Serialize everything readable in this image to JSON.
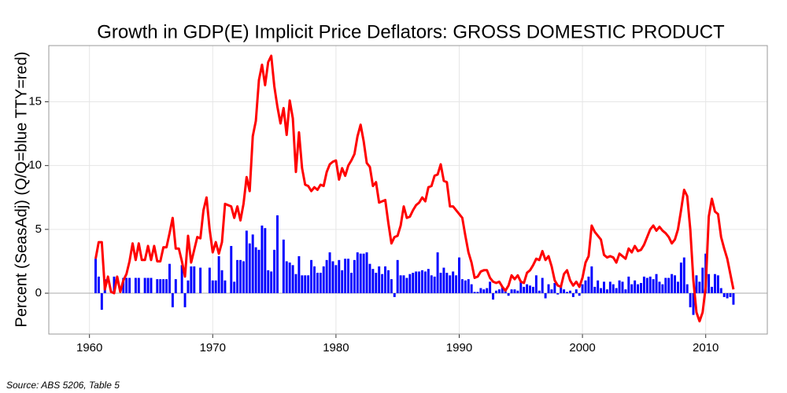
{
  "chart_data": {
    "type": "bar",
    "title": "Growth in GDP(E) Implicit Price Deflators: GROSS DOMESTIC PRODUCT",
    "y_label": "Percent (SeasAdj) (Q/Q=blue TTY=red)",
    "caption": "Source: ABS 5206, Table 5",
    "xlim": [
      1956.7,
      2015.0
    ],
    "ylim": [
      -3.2,
      19.4
    ],
    "xticks": [
      1960,
      1970,
      1980,
      1990,
      2000,
      2010
    ],
    "yticks": [
      0,
      5,
      10,
      15
    ],
    "grid": true,
    "x": [
      1960.5,
      1960.75,
      1961,
      1961.25,
      1961.5,
      1961.75,
      1962,
      1962.25,
      1962.5,
      1962.75,
      1963,
      1963.25,
      1963.5,
      1963.75,
      1964,
      1964.25,
      1964.5,
      1964.75,
      1965,
      1965.25,
      1965.5,
      1965.75,
      1966,
      1966.25,
      1966.5,
      1966.75,
      1967,
      1967.25,
      1967.5,
      1967.75,
      1968,
      1968.25,
      1968.5,
      1968.75,
      1969,
      1969.25,
      1969.5,
      1969.75,
      1970,
      1970.25,
      1970.5,
      1970.75,
      1971,
      1971.25,
      1971.5,
      1971.75,
      1972,
      1972.25,
      1972.5,
      1972.75,
      1973,
      1973.25,
      1973.5,
      1973.75,
      1974,
      1974.25,
      1974.5,
      1974.75,
      1975,
      1975.25,
      1975.5,
      1975.75,
      1976,
      1976.25,
      1976.5,
      1976.75,
      1977,
      1977.25,
      1977.5,
      1977.75,
      1978,
      1978.25,
      1978.5,
      1978.75,
      1979,
      1979.25,
      1979.5,
      1979.75,
      1980,
      1980.25,
      1980.5,
      1980.75,
      1981,
      1981.25,
      1981.5,
      1981.75,
      1982,
      1982.25,
      1982.5,
      1982.75,
      1983,
      1983.25,
      1983.5,
      1983.75,
      1984,
      1984.25,
      1984.5,
      1984.75,
      1985,
      1985.25,
      1985.5,
      1985.75,
      1986,
      1986.25,
      1986.5,
      1986.75,
      1987,
      1987.25,
      1987.5,
      1987.75,
      1988,
      1988.25,
      1988.5,
      1988.75,
      1989,
      1989.25,
      1989.5,
      1989.75,
      1990,
      1990.25,
      1990.5,
      1990.75,
      1991,
      1991.25,
      1991.5,
      1991.75,
      1992,
      1992.25,
      1992.5,
      1992.75,
      1993,
      1993.25,
      1993.5,
      1993.75,
      1994,
      1994.25,
      1994.5,
      1994.75,
      1995,
      1995.25,
      1995.5,
      1995.75,
      1996,
      1996.25,
      1996.5,
      1996.75,
      1997,
      1997.25,
      1997.5,
      1997.75,
      1998,
      1998.25,
      1998.5,
      1998.75,
      1999,
      1999.25,
      1999.5,
      1999.75,
      2000,
      2000.25,
      2000.5,
      2000.75,
      2001,
      2001.25,
      2001.5,
      2001.75,
      2002,
      2002.25,
      2002.5,
      2002.75,
      2003,
      2003.25,
      2003.5,
      2003.75,
      2004,
      2004.25,
      2004.5,
      2004.75,
      2005,
      2005.25,
      2005.5,
      2005.75,
      2006,
      2006.25,
      2006.5,
      2006.75,
      2007,
      2007.25,
      2007.5,
      2007.75,
      2008,
      2008.25,
      2008.5,
      2008.75,
      2009,
      2009.25,
      2009.5,
      2009.75,
      2010,
      2010.25,
      2010.5,
      2010.75,
      2011,
      2011.25,
      2011.5,
      2011.75,
      2012,
      2012.25
    ],
    "series": [
      {
        "type": "bar",
        "color": "#0000ff",
        "values": [
          2.7,
          1.3,
          -1.3,
          1.1,
          0.0,
          0.0,
          1.3,
          0.0,
          0.0,
          1.2,
          1.2,
          1.2,
          0.0,
          1.2,
          1.2,
          0.0,
          1.2,
          1.2,
          1.2,
          0.0,
          1.1,
          1.1,
          1.1,
          1.1,
          2.3,
          -1.1,
          1.1,
          0.0,
          2.2,
          -1.1,
          1.0,
          2.1,
          2.1,
          0.0,
          2.0,
          0.0,
          0.0,
          2.0,
          1.0,
          1.0,
          2.9,
          1.8,
          1.0,
          0.0,
          3.7,
          0.9,
          2.6,
          2.6,
          2.5,
          4.9,
          3.9,
          4.6,
          3.6,
          3.4,
          5.3,
          5.1,
          1.8,
          1.7,
          3.4,
          6.1,
          0.0,
          4.2,
          2.5,
          2.4,
          2.2,
          1.5,
          2.9,
          1.4,
          1.4,
          1.4,
          2.6,
          2.1,
          1.6,
          1.6,
          2.1,
          2.6,
          3.2,
          2.5,
          2.2,
          2.6,
          1.8,
          2.7,
          2.7,
          1.6,
          2.6,
          3.2,
          3.1,
          3.1,
          3.2,
          2.3,
          1.9,
          1.6,
          2.1,
          1.5,
          2.1,
          1.8,
          1.1,
          -0.3,
          2.6,
          1.4,
          1.4,
          1.2,
          1.5,
          1.6,
          1.7,
          1.7,
          1.8,
          1.7,
          1.9,
          1.4,
          1.3,
          3.2,
          1.6,
          2.0,
          1.6,
          1.4,
          1.7,
          1.4,
          2.8,
          1.1,
          1.0,
          1.1,
          0.7,
          0.1,
          0.1,
          0.4,
          0.3,
          0.4,
          0.9,
          -0.5,
          0.2,
          0.3,
          0.5,
          0.2,
          -0.2,
          0.3,
          0.3,
          0.2,
          0.9,
          0.5,
          0.7,
          0.6,
          0.5,
          1.4,
          0.2,
          1.2,
          -0.4,
          0.7,
          0.3,
          0.8,
          -0.1,
          0.6,
          0.3,
          0.1,
          0.2,
          -0.3,
          0.3,
          -0.2,
          0.7,
          1.0,
          1.3,
          2.1,
          0.5,
          1.0,
          0.4,
          0.9,
          0.3,
          0.9,
          0.7,
          0.4,
          1.0,
          0.9,
          0.3,
          1.3,
          0.7,
          1.0,
          0.7,
          0.8,
          1.3,
          1.2,
          1.3,
          1.1,
          1.5,
          0.9,
          0.7,
          1.2,
          1.2,
          1.5,
          1.4,
          0.9,
          2.4,
          2.8,
          0.7,
          -1.1,
          -1.7,
          1.4,
          0.9,
          2.0,
          3.1,
          1.5,
          0.5,
          1.5,
          1.4,
          0.4,
          -0.3,
          -0.4,
          -0.3,
          -0.9
        ]
      },
      {
        "type": "line",
        "color": "#ff0000",
        "values": [
          2.7,
          4.0,
          4.0,
          0.3,
          1.3,
          0.1,
          0.0,
          1.3,
          0.1,
          1.0,
          1.5,
          2.5,
          3.9,
          2.6,
          3.9,
          2.6,
          2.6,
          3.7,
          2.6,
          3.7,
          2.5,
          2.5,
          3.6,
          3.6,
          4.7,
          5.9,
          3.5,
          3.5,
          2.5,
          1.3,
          4.5,
          2.4,
          3.4,
          4.4,
          4.3,
          6.5,
          7.5,
          5.0,
          3.2,
          4.0,
          3.1,
          4.0,
          7.0,
          6.9,
          6.8,
          5.9,
          6.8,
          5.7,
          7.0,
          9.1,
          8.0,
          12.3,
          13.5,
          16.7,
          17.9,
          16.3,
          18.1,
          18.6,
          16.2,
          14.6,
          13.3,
          14.5,
          12.4,
          15.1,
          13.7,
          9.5,
          12.6,
          9.8,
          8.5,
          8.4,
          8.0,
          8.3,
          8.1,
          8.5,
          8.4,
          9.5,
          10.1,
          10.3,
          10.4,
          8.9,
          9.8,
          9.2,
          10.0,
          10.4,
          10.9,
          12.3,
          13.2,
          11.9,
          10.2,
          9.9,
          8.4,
          8.7,
          7.1,
          7.2,
          7.3,
          5.5,
          3.9,
          4.4,
          4.5,
          5.3,
          6.8,
          5.9,
          6.0,
          6.5,
          6.9,
          7.1,
          7.5,
          7.2,
          8.3,
          8.4,
          9.2,
          9.3,
          10.1,
          8.8,
          8.7,
          6.8,
          6.8,
          6.5,
          6.2,
          5.9,
          4.5,
          3.2,
          2.4,
          1.2,
          1.3,
          1.7,
          1.8,
          1.8,
          1.2,
          0.9,
          0.8,
          0.9,
          0.5,
          0.2,
          0.6,
          1.4,
          1.1,
          1.4,
          0.9,
          0.8,
          1.6,
          1.8,
          2.2,
          2.7,
          2.6,
          3.3,
          2.6,
          2.9,
          2.1,
          1.0,
          0.6,
          0.5,
          1.5,
          1.8,
          1.0,
          0.6,
          0.9,
          0.5,
          1.2,
          2.4,
          2.9,
          5.3,
          4.8,
          4.5,
          4.2,
          3.0,
          2.8,
          2.9,
          2.8,
          2.4,
          3.1,
          2.9,
          2.7,
          3.5,
          3.2,
          3.7,
          3.3,
          3.4,
          3.8,
          4.4,
          5.0,
          5.3,
          4.9,
          5.2,
          4.9,
          4.7,
          4.4,
          3.9,
          4.2,
          5.0,
          6.5,
          8.1,
          7.6,
          5.0,
          1.0,
          -1.5,
          -2.2,
          -1.5,
          0.5,
          6.0,
          7.4,
          6.4,
          6.2,
          4.4,
          3.5,
          2.7,
          1.5,
          0.3
        ]
      }
    ]
  }
}
